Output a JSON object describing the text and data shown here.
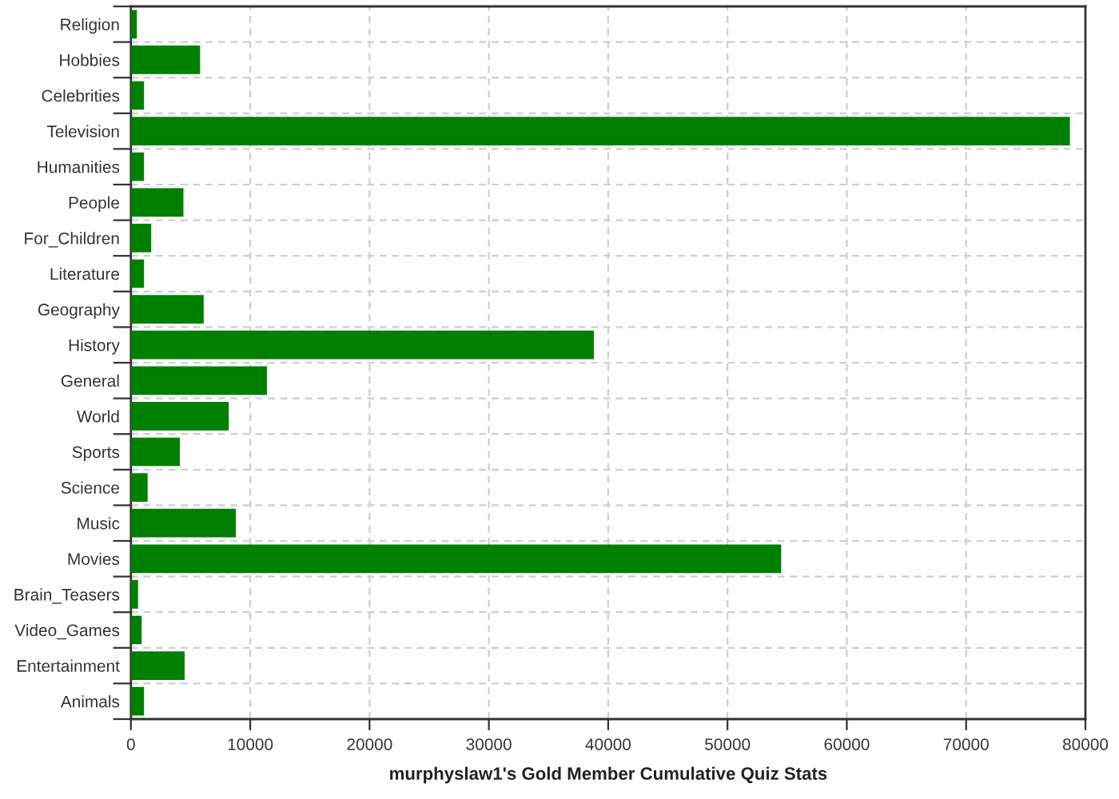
{
  "chart_data": {
    "type": "bar",
    "orientation": "horizontal",
    "xlabel": "murphyslaw1's Gold Member Cumulative Quiz Stats",
    "categories": [
      "Religion",
      "Hobbies",
      "Celebrities",
      "Television",
      "Humanities",
      "People",
      "For_Children",
      "Literature",
      "Geography",
      "History",
      "General",
      "World",
      "Sports",
      "Science",
      "Music",
      "Movies",
      "Brain_Teasers",
      "Video_Games",
      "Entertainment",
      "Animals"
    ],
    "values": [
      500,
      5800,
      1100,
      78700,
      1100,
      4400,
      1700,
      1100,
      6100,
      38800,
      11400,
      8200,
      4100,
      1400,
      8800,
      54500,
      600,
      900,
      4500,
      1100
    ],
    "color": "#008000",
    "xlim": [
      0,
      80000
    ],
    "xticks": [
      0,
      10000,
      20000,
      30000,
      40000,
      50000,
      60000,
      70000,
      80000
    ],
    "grid": true
  }
}
